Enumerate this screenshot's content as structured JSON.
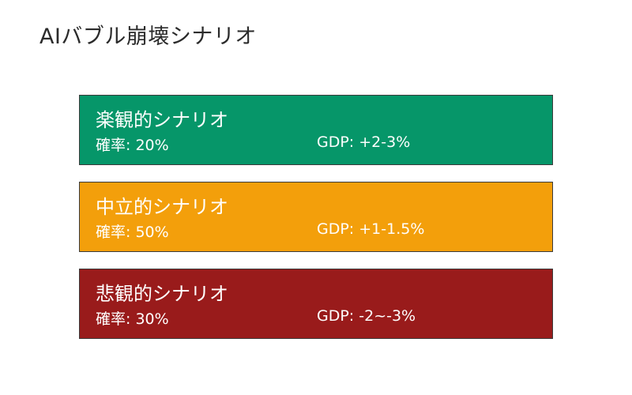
{
  "title": "AIバブル崩壊シナリオ",
  "scenarios": [
    {
      "name": "楽観的シナリオ",
      "probability": "確率: 20%",
      "gdp": "GDP: +2-3%",
      "color": "#069669"
    },
    {
      "name": "中立的シナリオ",
      "probability": "確率: 50%",
      "gdp": "GDP: +1-1.5%",
      "color": "#f39f0b"
    },
    {
      "name": "悲観的シナリオ",
      "probability": "確率: 30%",
      "gdp": "GDP: -2~-3%",
      "color": "#991b1b"
    }
  ],
  "border_color": "#3b3b3b"
}
